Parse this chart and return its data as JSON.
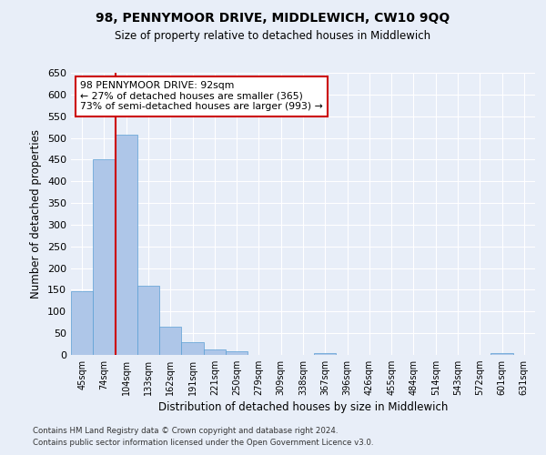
{
  "title": "98, PENNYMOOR DRIVE, MIDDLEWICH, CW10 9QQ",
  "subtitle": "Size of property relative to detached houses in Middlewich",
  "xlabel": "Distribution of detached houses by size in Middlewich",
  "ylabel": "Number of detached properties",
  "categories": [
    "45sqm",
    "74sqm",
    "104sqm",
    "133sqm",
    "162sqm",
    "191sqm",
    "221sqm",
    "250sqm",
    "279sqm",
    "309sqm",
    "338sqm",
    "367sqm",
    "396sqm",
    "426sqm",
    "455sqm",
    "484sqm",
    "514sqm",
    "543sqm",
    "572sqm",
    "601sqm",
    "631sqm"
  ],
  "values": [
    147,
    450,
    508,
    160,
    65,
    30,
    13,
    8,
    0,
    0,
    0,
    5,
    0,
    0,
    0,
    0,
    0,
    0,
    0,
    5,
    0
  ],
  "bar_color": "#aec6e8",
  "bar_edge_color": "#5a9fd4",
  "background_color": "#e8eef8",
  "grid_color": "#ffffff",
  "property_line_x": 1.5,
  "annotation_text": "98 PENNYMOOR DRIVE: 92sqm\n← 27% of detached houses are smaller (365)\n73% of semi-detached houses are larger (993) →",
  "annotation_box_color": "#ffffff",
  "annotation_box_edge_color": "#cc0000",
  "red_line_color": "#cc0000",
  "ylim": [
    0,
    650
  ],
  "yticks": [
    0,
    50,
    100,
    150,
    200,
    250,
    300,
    350,
    400,
    450,
    500,
    550,
    600,
    650
  ],
  "footer_line1": "Contains HM Land Registry data © Crown copyright and database right 2024.",
  "footer_line2": "Contains public sector information licensed under the Open Government Licence v3.0."
}
